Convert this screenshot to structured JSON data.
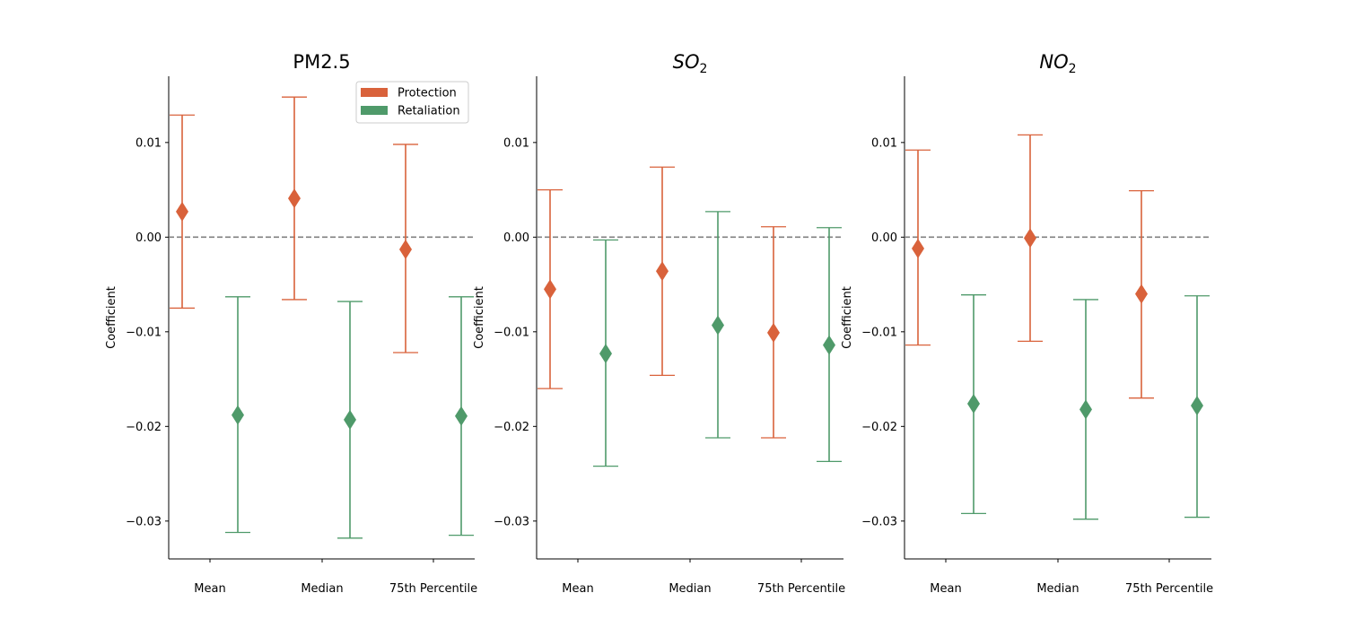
{
  "chart_data": [
    {
      "type": "errorbar",
      "title": "PM2.5",
      "title_parts": [
        {
          "text": "PM2.5",
          "sub": ""
        }
      ],
      "ylabel": "Coefficient",
      "categories": [
        "Mean",
        "Median",
        "75th Percentile"
      ],
      "ylim": [
        -0.034,
        0.017
      ],
      "yticks": [
        -0.03,
        -0.02,
        -0.01,
        0.0,
        0.01
      ],
      "ytick_labels": [
        "−0.03",
        "−0.02",
        "−0.01",
        "0.00",
        "0.01"
      ],
      "reference_line": 0,
      "legend": {
        "location": "upper right",
        "visible": true
      },
      "series": [
        {
          "name": "Protection",
          "color": "#d9623b",
          "estimate": [
            0.0027,
            0.0041,
            -0.0013
          ],
          "lower": [
            -0.0075,
            -0.0066,
            -0.0122
          ],
          "upper": [
            0.0129,
            0.0148,
            0.0098
          ]
        },
        {
          "name": "Retaliation",
          "color": "#4f9a6a",
          "estimate": [
            -0.0188,
            -0.0193,
            -0.0189
          ],
          "lower": [
            -0.0312,
            -0.0318,
            -0.0315
          ],
          "upper": [
            -0.0063,
            -0.0068,
            -0.0063
          ]
        }
      ]
    },
    {
      "type": "errorbar",
      "title": "SO2",
      "title_parts": [
        {
          "text": "SO",
          "sub": "2"
        }
      ],
      "ylabel": "Coefficient",
      "categories": [
        "Mean",
        "Median",
        "75th Percentile"
      ],
      "ylim": [
        -0.034,
        0.017
      ],
      "yticks": [
        -0.03,
        -0.02,
        -0.01,
        0.0,
        0.01
      ],
      "ytick_labels": [
        "−0.03",
        "−0.02",
        "−0.01",
        "0.00",
        "0.01"
      ],
      "reference_line": 0,
      "legend": {
        "visible": false
      },
      "series": [
        {
          "name": "Protection",
          "color": "#d9623b",
          "estimate": [
            -0.0055,
            -0.0036,
            -0.0101
          ],
          "lower": [
            -0.016,
            -0.0146,
            -0.0212
          ],
          "upper": [
            0.005,
            0.0074,
            0.0011
          ]
        },
        {
          "name": "Retaliation",
          "color": "#4f9a6a",
          "estimate": [
            -0.0123,
            -0.0093,
            -0.0114
          ],
          "lower": [
            -0.0242,
            -0.0212,
            -0.0237
          ],
          "upper": [
            -0.0003,
            0.0027,
            0.001
          ]
        }
      ]
    },
    {
      "type": "errorbar",
      "title": "NO2",
      "title_parts": [
        {
          "text": "NO",
          "sub": "2"
        }
      ],
      "ylabel": "Coefficient",
      "categories": [
        "Mean",
        "Median",
        "75th Percentile"
      ],
      "ylim": [
        -0.034,
        0.017
      ],
      "yticks": [
        -0.03,
        -0.02,
        -0.01,
        0.0,
        0.01
      ],
      "ytick_labels": [
        "−0.03",
        "−0.02",
        "−0.01",
        "0.00",
        "0.01"
      ],
      "reference_line": 0,
      "legend": {
        "visible": false
      },
      "series": [
        {
          "name": "Protection",
          "color": "#d9623b",
          "estimate": [
            -0.0012,
            -0.0001,
            -0.006
          ],
          "lower": [
            -0.0114,
            -0.011,
            -0.017
          ],
          "upper": [
            0.0092,
            0.0108,
            0.0049
          ]
        },
        {
          "name": "Retaliation",
          "color": "#4f9a6a",
          "estimate": [
            -0.0176,
            -0.0182,
            -0.0178
          ],
          "lower": [
            -0.0292,
            -0.0298,
            -0.0296
          ],
          "upper": [
            -0.0061,
            -0.0066,
            -0.0062
          ]
        }
      ]
    }
  ]
}
